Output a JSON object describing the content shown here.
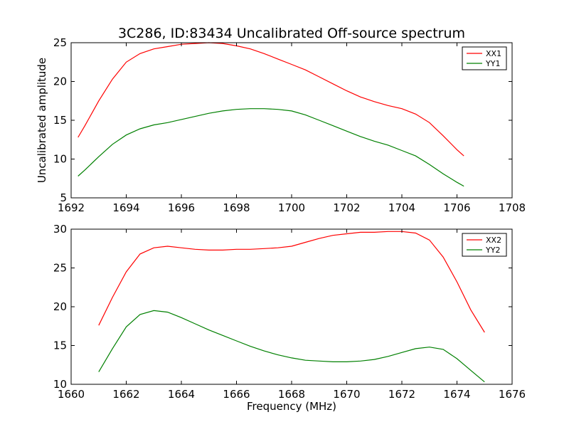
{
  "chart_data": [
    {
      "type": "line",
      "title": "3C286, ID:83434 Uncalibrated Off-source spectrum",
      "xlabel": "",
      "ylabel": "Uncalibrated amplitude",
      "xlim": [
        1692,
        1708
      ],
      "ylim": [
        5,
        25
      ],
      "xticks": [
        1692,
        1694,
        1696,
        1698,
        1700,
        1702,
        1704,
        1706,
        1708
      ],
      "yticks": [
        5,
        10,
        15,
        20,
        25
      ],
      "legend": "top-right",
      "grid": false,
      "series": [
        {
          "name": "XX1",
          "color": "#ff0000",
          "x": [
            1692.25,
            1692.5,
            1693.0,
            1693.5,
            1694.0,
            1694.5,
            1695.0,
            1695.5,
            1696.0,
            1696.5,
            1697.0,
            1697.5,
            1698.0,
            1698.5,
            1699.0,
            1699.5,
            1700.0,
            1700.5,
            1701.0,
            1701.5,
            1702.0,
            1702.5,
            1703.0,
            1703.5,
            1704.0,
            1704.5,
            1705.0,
            1705.5,
            1706.0,
            1706.25
          ],
          "y": [
            12.8,
            14.3,
            17.5,
            20.3,
            22.5,
            23.6,
            24.2,
            24.5,
            24.8,
            24.9,
            25.0,
            24.9,
            24.6,
            24.2,
            23.6,
            22.9,
            22.2,
            21.5,
            20.6,
            19.7,
            18.8,
            18.0,
            17.4,
            16.9,
            16.5,
            15.8,
            14.7,
            13.0,
            11.2,
            10.4
          ]
        },
        {
          "name": "YY1",
          "color": "#008000",
          "x": [
            1692.25,
            1692.5,
            1693.0,
            1693.5,
            1694.0,
            1694.5,
            1695.0,
            1695.5,
            1696.0,
            1696.5,
            1697.0,
            1697.5,
            1698.0,
            1698.5,
            1699.0,
            1699.5,
            1700.0,
            1700.5,
            1701.0,
            1701.5,
            1702.0,
            1702.5,
            1703.0,
            1703.5,
            1704.0,
            1704.5,
            1705.0,
            1705.5,
            1706.0,
            1706.25
          ],
          "y": [
            7.8,
            8.6,
            10.3,
            11.9,
            13.1,
            13.9,
            14.4,
            14.7,
            15.1,
            15.5,
            15.9,
            16.2,
            16.4,
            16.5,
            16.5,
            16.4,
            16.2,
            15.7,
            15.0,
            14.3,
            13.6,
            12.9,
            12.3,
            11.8,
            11.1,
            10.4,
            9.3,
            8.1,
            7.0,
            6.5
          ]
        }
      ]
    },
    {
      "type": "line",
      "title": "",
      "xlabel": "Frequency (MHz)",
      "ylabel": "",
      "xlim": [
        1660,
        1676
      ],
      "ylim": [
        10,
        30
      ],
      "xticks": [
        1660,
        1662,
        1664,
        1666,
        1668,
        1670,
        1672,
        1674,
        1676
      ],
      "yticks": [
        10,
        15,
        20,
        25,
        30
      ],
      "legend": "top-right",
      "grid": false,
      "series": [
        {
          "name": "XX2",
          "color": "#ff0000",
          "x": [
            1661.0,
            1661.5,
            1662.0,
            1662.5,
            1663.0,
            1663.5,
            1664.0,
            1664.5,
            1665.0,
            1665.5,
            1666.0,
            1666.5,
            1667.0,
            1667.5,
            1668.0,
            1668.5,
            1669.0,
            1669.5,
            1670.0,
            1670.5,
            1671.0,
            1671.5,
            1672.0,
            1672.5,
            1673.0,
            1673.5,
            1674.0,
            1674.5,
            1675.0
          ],
          "y": [
            17.6,
            21.2,
            24.5,
            26.8,
            27.6,
            27.8,
            27.6,
            27.4,
            27.3,
            27.3,
            27.4,
            27.4,
            27.5,
            27.6,
            27.8,
            28.3,
            28.8,
            29.2,
            29.4,
            29.6,
            29.6,
            29.7,
            29.7,
            29.5,
            28.6,
            26.4,
            23.2,
            19.6,
            16.7
          ]
        },
        {
          "name": "YY2",
          "color": "#008000",
          "x": [
            1661.0,
            1661.5,
            1662.0,
            1662.5,
            1663.0,
            1663.5,
            1664.0,
            1664.5,
            1665.0,
            1665.5,
            1666.0,
            1666.5,
            1667.0,
            1667.5,
            1668.0,
            1668.5,
            1669.0,
            1669.5,
            1670.0,
            1670.5,
            1671.0,
            1671.5,
            1672.0,
            1672.5,
            1673.0,
            1673.5,
            1674.0,
            1674.5,
            1675.0
          ],
          "y": [
            11.6,
            14.6,
            17.4,
            19.0,
            19.5,
            19.3,
            18.6,
            17.8,
            17.0,
            16.3,
            15.6,
            14.9,
            14.3,
            13.8,
            13.4,
            13.1,
            13.0,
            12.9,
            12.9,
            13.0,
            13.2,
            13.6,
            14.1,
            14.6,
            14.8,
            14.5,
            13.3,
            11.8,
            10.3
          ]
        }
      ]
    }
  ]
}
